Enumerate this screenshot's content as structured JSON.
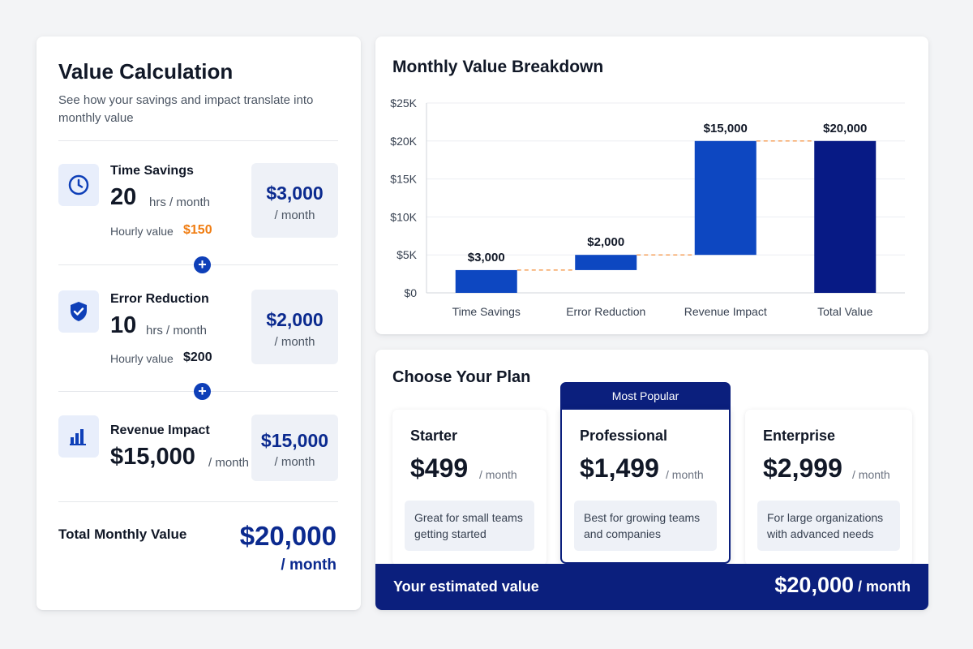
{
  "value_calc": {
    "title": "Value Calculation",
    "subtitle": "See how your savings and impact translate into monthly value",
    "items": [
      {
        "label": "Time Savings",
        "number": "20",
        "unit": "hrs / month",
        "rate_label": "Hourly value",
        "rate": "$150",
        "rate_color": "#f07d12",
        "value": "$3,000",
        "per": "/ month",
        "icon": "clock-icon"
      },
      {
        "label": "Error Reduction",
        "number": "10",
        "unit": "hrs / month",
        "rate_label": "Hourly value",
        "rate": "$200",
        "rate_color": "#111827",
        "value": "$2,000",
        "per": "/ month",
        "icon": "shield-check-icon"
      },
      {
        "label": "Revenue Impact",
        "number": "$15,000",
        "unit": "/ month",
        "value": "$15,000",
        "per": "/ month",
        "icon": "bar-chart-icon"
      }
    ],
    "plus_symbol": "+",
    "total_label": "Total Monthly Value",
    "total_value": "$20,000",
    "total_per": "/ month"
  },
  "chart_section": {
    "title": "Monthly Value Breakdown"
  },
  "chart_data": {
    "type": "bar",
    "subtype": "waterfall",
    "title": "Monthly Value Breakdown",
    "categories": [
      "Time Savings",
      "Error Reduction",
      "Revenue Impact",
      "Total Value"
    ],
    "values": [
      3000,
      2000,
      15000,
      20000
    ],
    "data_labels": [
      "$3,000",
      "$2,000",
      "$15,000",
      "$20,000"
    ],
    "yticks": [
      0,
      5000,
      10000,
      15000,
      20000,
      25000
    ],
    "ytick_labels": [
      "$0",
      "$5K",
      "$10K",
      "$15K",
      "$20K",
      "$25K"
    ],
    "ylim": [
      0,
      25000
    ],
    "grid": true,
    "connector_color": "#f5a25d",
    "colors": [
      "#0d47c1",
      "#0d47c1",
      "#0d47c1",
      "#071a85"
    ]
  },
  "plans": {
    "title": "Choose Your Plan",
    "badge": "Most Popular",
    "items": [
      {
        "name": "Starter",
        "price": "$499",
        "per": "/ month",
        "desc": "Great for small teams getting started"
      },
      {
        "name": "Professional",
        "price": "$1,499",
        "per": "/ month",
        "desc": "Best for growing teams and companies"
      },
      {
        "name": "Enterprise",
        "price": "$2,999",
        "per": "/ month",
        "desc": "For large organizations with advanced needs"
      }
    ],
    "estimated_label": "Your estimated value",
    "estimated_value": "$20,000",
    "estimated_per": "/ month"
  },
  "colors": {
    "primary": "#0e3fb8",
    "navy": "#0b1f7d",
    "accent_orange": "#f07d12"
  }
}
